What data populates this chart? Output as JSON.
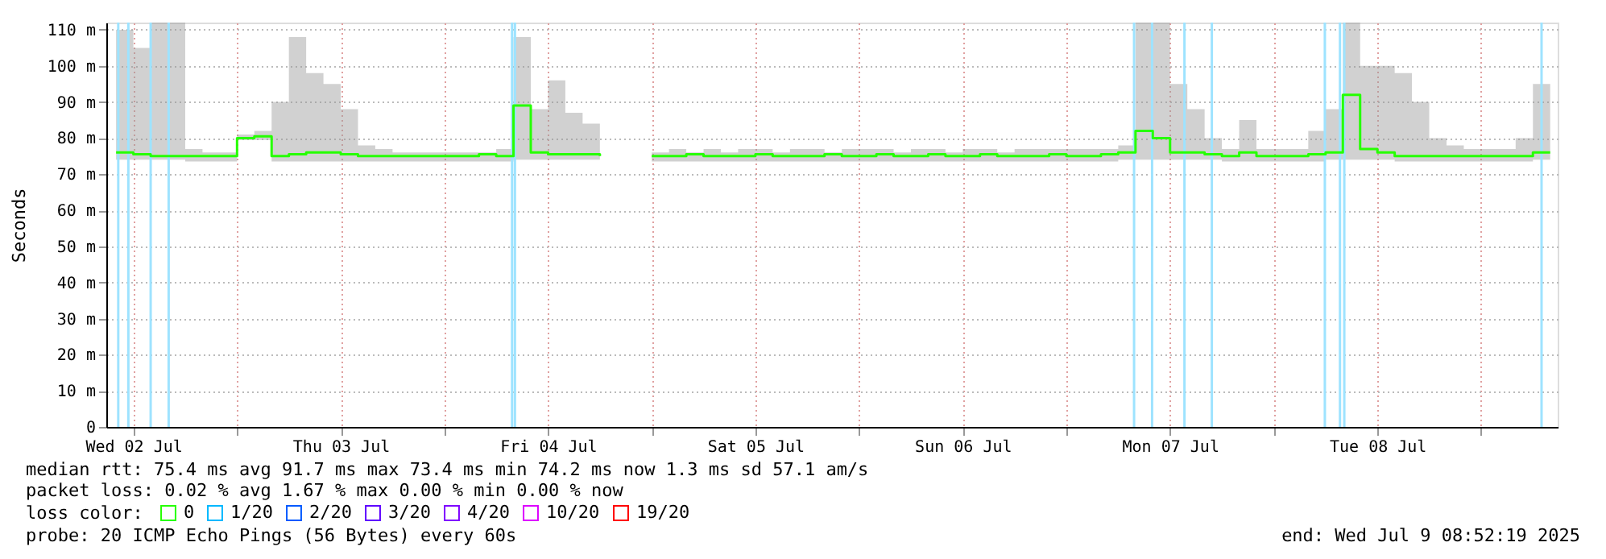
{
  "chart_data": {
    "type": "step",
    "ylabel": "Seconds",
    "legend_title": "loss color:",
    "legend": "bottom left",
    "grid": true,
    "marker": "none",
    "line_style": "solid",
    "xlim": [
      "2025-07-02T08:52",
      "2025-07-09T08:52"
    ],
    "xticks": [
      {
        "value": "2025-07-02T12:00",
        "label": "Wed 02 Jul"
      },
      {
        "value": "2025-07-03T00:00",
        "label": null
      },
      {
        "value": "2025-07-03T12:00",
        "label": "Thu 03 Jul"
      },
      {
        "value": "2025-07-04T00:00",
        "label": null
      },
      {
        "value": "2025-07-04T12:00",
        "label": "Fri 04 Jul"
      },
      {
        "value": "2025-07-05T00:00",
        "label": null
      },
      {
        "value": "2025-07-05T12:00",
        "label": "Sat 05 Jul"
      },
      {
        "value": "2025-07-06T00:00",
        "label": null
      },
      {
        "value": "2025-07-06T12:00",
        "label": "Sun 06 Jul"
      },
      {
        "value": "2025-07-07T00:00",
        "label": null
      },
      {
        "value": "2025-07-07T12:00",
        "label": "Mon 07 Jul"
      },
      {
        "value": "2025-07-08T00:00",
        "label": null
      },
      {
        "value": "2025-07-08T12:00",
        "label": "Tue 08 Jul"
      },
      {
        "value": "2025-07-09T00:00",
        "label": null
      }
    ],
    "ylim": [
      0,
      112
    ],
    "yticks": [
      {
        "value": 0,
        "label": "0"
      },
      {
        "value": 10,
        "label": "10 m"
      },
      {
        "value": 20,
        "label": "20 m"
      },
      {
        "value": 30,
        "label": "30 m"
      },
      {
        "value": 40,
        "label": "40 m"
      },
      {
        "value": 50,
        "label": "50 m"
      },
      {
        "value": 60,
        "label": "60 m"
      },
      {
        "value": 70,
        "label": "70 m"
      },
      {
        "value": 80,
        "label": "80 m"
      },
      {
        "value": 90,
        "label": "90 m"
      },
      {
        "value": 100,
        "label": "100 m"
      },
      {
        "value": 110,
        "label": "110 m"
      }
    ],
    "x": [
      "2025-07-02T10:00",
      "2025-07-02T12:00",
      "2025-07-02T14:00",
      "2025-07-02T16:00",
      "2025-07-02T18:00",
      "2025-07-02T20:00",
      "2025-07-02T22:00",
      "2025-07-03T00:00",
      "2025-07-03T02:00",
      "2025-07-03T04:00",
      "2025-07-03T06:00",
      "2025-07-03T08:00",
      "2025-07-03T10:00",
      "2025-07-03T12:00",
      "2025-07-03T14:00",
      "2025-07-03T16:00",
      "2025-07-03T18:00",
      "2025-07-03T20:00",
      "2025-07-03T22:00",
      "2025-07-04T00:00",
      "2025-07-04T02:00",
      "2025-07-04T04:00",
      "2025-07-04T06:00",
      "2025-07-04T08:00",
      "2025-07-04T10:00",
      "2025-07-04T12:00",
      "2025-07-04T14:00",
      "2025-07-04T16:00",
      "2025-07-04T18:00",
      "2025-07-04T20:00",
      "2025-07-04T22:00",
      "2025-07-05T00:00",
      "2025-07-05T02:00",
      "2025-07-05T04:00",
      "2025-07-05T06:00",
      "2025-07-05T08:00",
      "2025-07-05T10:00",
      "2025-07-05T12:00",
      "2025-07-05T14:00",
      "2025-07-05T16:00",
      "2025-07-05T18:00",
      "2025-07-05T20:00",
      "2025-07-05T22:00",
      "2025-07-06T00:00",
      "2025-07-06T02:00",
      "2025-07-06T04:00",
      "2025-07-06T06:00",
      "2025-07-06T08:00",
      "2025-07-06T10:00",
      "2025-07-06T12:00",
      "2025-07-06T14:00",
      "2025-07-06T16:00",
      "2025-07-06T18:00",
      "2025-07-06T20:00",
      "2025-07-06T22:00",
      "2025-07-07T00:00",
      "2025-07-07T02:00",
      "2025-07-07T04:00",
      "2025-07-07T06:00",
      "2025-07-07T08:00",
      "2025-07-07T10:00",
      "2025-07-07T12:00",
      "2025-07-07T14:00",
      "2025-07-07T16:00",
      "2025-07-07T18:00",
      "2025-07-07T20:00",
      "2025-07-07T22:00",
      "2025-07-08T00:00",
      "2025-07-08T02:00",
      "2025-07-08T04:00",
      "2025-07-08T06:00",
      "2025-07-08T08:00",
      "2025-07-08T10:00",
      "2025-07-08T12:00",
      "2025-07-08T14:00",
      "2025-07-08T16:00",
      "2025-07-08T18:00",
      "2025-07-08T20:00",
      "2025-07-08T22:00",
      "2025-07-09T00:00",
      "2025-07-09T02:00",
      "2025-07-09T04:00",
      "2025-07-09T06:00",
      "2025-07-09T08:00"
    ],
    "series": [
      {
        "name": "0",
        "color": "#26ff00",
        "values": [
          76,
          75.5,
          75,
          75,
          75,
          75,
          75,
          80,
          80.5,
          75,
          75.5,
          76,
          76,
          75.5,
          75,
          75,
          75,
          75,
          75,
          75,
          75,
          75.5,
          75,
          89,
          76,
          75.5,
          75.5,
          75.5,
          75,
          null,
          null,
          75,
          75,
          75.5,
          75,
          75,
          75,
          75.5,
          75,
          75,
          75,
          75.5,
          75,
          75,
          75.5,
          75,
          75,
          75.5,
          75,
          75,
          75.5,
          75,
          75,
          75,
          75.5,
          75,
          75,
          75.5,
          76,
          82,
          80,
          76,
          76,
          75.5,
          75,
          76,
          75,
          75,
          75,
          75.5,
          76,
          92,
          77,
          76,
          75,
          75,
          75,
          75,
          75,
          75,
          75,
          75,
          76,
          76
        ],
        "lower": [
          74,
          74,
          74,
          74,
          73.5,
          73.5,
          73.5,
          79.5,
          79.5,
          73.5,
          73.5,
          73.5,
          73.5,
          73.5,
          73.5,
          73.5,
          73.5,
          73.5,
          73.5,
          73.5,
          73.5,
          73.5,
          73.5,
          74,
          74,
          74,
          74,
          74,
          74,
          null,
          null,
          73.5,
          73.5,
          73.5,
          73.5,
          73.5,
          73.5,
          73.5,
          73.5,
          73.5,
          73.5,
          73.5,
          73.5,
          73.5,
          73.5,
          73.5,
          73.5,
          73.5,
          73.5,
          73.5,
          73.5,
          73.5,
          73.5,
          73.5,
          73.5,
          73.5,
          73.5,
          73.5,
          74,
          74,
          74,
          74,
          74,
          74,
          73.5,
          73.5,
          73.5,
          73.5,
          73.5,
          73.5,
          74,
          74,
          74,
          74,
          73.5,
          73.5,
          73.5,
          73.5,
          73.5,
          73.5,
          73.5,
          73.5,
          74,
          74
        ],
        "upper": [
          110,
          105,
          112,
          112,
          77,
          76,
          76,
          81,
          82,
          90,
          108,
          98,
          95,
          88,
          78,
          77,
          76,
          76,
          76,
          76,
          76,
          76,
          77,
          108,
          88,
          96,
          87,
          84,
          77,
          null,
          null,
          76,
          77,
          76,
          77,
          76,
          77,
          77,
          76,
          77,
          77,
          76,
          77,
          77,
          77,
          76,
          77,
          77,
          76,
          77,
          77,
          76,
          77,
          77,
          77,
          77,
          77,
          77,
          78,
          112,
          112,
          95,
          88,
          80,
          77,
          85,
          77,
          77,
          77,
          82,
          88,
          112,
          100,
          100,
          98,
          90,
          80,
          78,
          77,
          77,
          77,
          80,
          95,
          95
        ]
      },
      {
        "name": "1/20",
        "color": "#00b8ff",
        "values": [
          null,
          null,
          null,
          null,
          null,
          null,
          null,
          null,
          null,
          null,
          null,
          null,
          null,
          null,
          null,
          null,
          null,
          null,
          null,
          null,
          null,
          null,
          null,
          null,
          null,
          null,
          null,
          null,
          null,
          null,
          null,
          null,
          null,
          null,
          null,
          null,
          null,
          null,
          null,
          null,
          null,
          null,
          null,
          null,
          null,
          null,
          null,
          null,
          null,
          null,
          null,
          null,
          null,
          null,
          null,
          null,
          null,
          null,
          null,
          null,
          null,
          null,
          null,
          null,
          null,
          null,
          null,
          null,
          null,
          null,
          null,
          null,
          null,
          null,
          null,
          null,
          null,
          null,
          null,
          null,
          null,
          null,
          null,
          null
        ]
      },
      {
        "name": "2/20",
        "color": "#0059ff",
        "values": [
          null,
          null,
          null,
          null,
          null,
          null,
          null,
          null,
          null,
          null,
          null,
          null,
          null,
          null,
          null,
          null,
          null,
          null,
          null,
          null,
          null,
          null,
          null,
          null,
          null,
          null,
          null,
          null,
          null,
          null,
          null,
          null,
          null,
          null,
          null,
          null,
          null,
          null,
          null,
          null,
          null,
          null,
          null,
          null,
          null,
          null,
          null,
          null,
          null,
          null,
          null,
          null,
          null,
          null,
          null,
          null,
          null,
          null,
          null,
          null,
          null,
          null,
          null,
          null,
          null,
          null,
          null,
          null,
          null,
          null,
          null,
          null,
          null,
          null,
          null,
          null,
          null,
          null,
          null,
          null,
          null,
          null,
          null,
          null
        ]
      },
      {
        "name": "3/20",
        "color": "#5e00ff",
        "values": [
          null,
          null,
          null,
          null,
          null,
          null,
          null,
          null,
          null,
          null,
          null,
          null,
          null,
          null,
          null,
          null,
          null,
          null,
          null,
          null,
          null,
          null,
          null,
          null,
          null,
          null,
          null,
          null,
          null,
          null,
          null,
          null,
          null,
          null,
          null,
          null,
          null,
          null,
          null,
          null,
          null,
          null,
          null,
          null,
          null,
          null,
          null,
          null,
          null,
          null,
          null,
          null,
          null,
          null,
          null,
          null,
          null,
          null,
          null,
          null,
          null,
          null,
          null,
          null,
          null,
          null,
          null,
          null,
          null,
          null,
          null,
          null,
          null,
          null,
          null,
          null,
          null,
          null,
          null,
          null,
          null,
          null,
          null,
          null
        ]
      },
      {
        "name": "4/20",
        "color": "#7e00ff",
        "values": [
          null,
          null,
          null,
          null,
          null,
          null,
          null,
          null,
          null,
          null,
          null,
          null,
          null,
          null,
          null,
          null,
          null,
          null,
          null,
          null,
          null,
          null,
          null,
          null,
          null,
          null,
          null,
          null,
          null,
          null,
          null,
          null,
          null,
          null,
          null,
          null,
          null,
          null,
          null,
          null,
          null,
          null,
          null,
          null,
          null,
          null,
          null,
          null,
          null,
          null,
          null,
          null,
          null,
          null,
          null,
          null,
          null,
          null,
          null,
          null,
          null,
          null,
          null,
          null,
          null,
          null,
          null,
          null,
          null,
          null,
          null,
          null,
          null,
          null,
          null,
          null,
          null,
          null,
          null,
          null,
          null,
          null,
          null,
          null
        ]
      },
      {
        "name": "10/20",
        "color": "#dd00ff",
        "values": [
          null,
          null,
          null,
          null,
          null,
          null,
          null,
          null,
          null,
          null,
          null,
          null,
          null,
          null,
          null,
          null,
          null,
          null,
          null,
          null,
          null,
          null,
          null,
          null,
          null,
          null,
          null,
          null,
          null,
          null,
          null,
          null,
          null,
          null,
          null,
          null,
          null,
          null,
          null,
          null,
          null,
          null,
          null,
          null,
          null,
          null,
          null,
          null,
          null,
          null,
          null,
          null,
          null,
          null,
          null,
          null,
          null,
          null,
          null,
          null,
          null,
          null,
          null,
          null,
          null,
          null,
          null,
          null,
          null,
          null,
          null,
          null,
          null,
          null,
          null,
          null,
          null,
          null,
          null,
          null,
          null,
          null,
          null,
          null
        ]
      },
      {
        "name": "19/20",
        "color": "#ff0000",
        "values": [
          null,
          null,
          null,
          null,
          null,
          null,
          null,
          null,
          null,
          null,
          null,
          null,
          null,
          null,
          null,
          null,
          null,
          null,
          null,
          null,
          null,
          null,
          null,
          null,
          null,
          null,
          null,
          null,
          null,
          null,
          null,
          null,
          null,
          null,
          null,
          null,
          null,
          null,
          null,
          null,
          null,
          null,
          null,
          null,
          null,
          null,
          null,
          null,
          null,
          null,
          null,
          null,
          null,
          null,
          null,
          null,
          null,
          null,
          null,
          null,
          null,
          null,
          null,
          null,
          null,
          null,
          null,
          null,
          null,
          null,
          null,
          null,
          null,
          null,
          null,
          null,
          null,
          null,
          null,
          null,
          null,
          null,
          null,
          null
        ]
      }
    ],
    "ref_lines": [
      {
        "axis": "x",
        "value": "2025-07-02T10:15",
        "color": "#9ee3ff"
      },
      {
        "axis": "x",
        "value": "2025-07-02T11:25",
        "color": "#9ee3ff"
      },
      {
        "axis": "x",
        "value": "2025-07-02T14:00",
        "color": "#9ee3ff"
      },
      {
        "axis": "x",
        "value": "2025-07-02T16:05",
        "color": "#9ee3ff"
      },
      {
        "axis": "x",
        "value": "2025-07-04T07:50",
        "color": "#9ee3ff"
      },
      {
        "axis": "x",
        "value": "2025-07-04T08:10",
        "color": "#9ee3ff"
      },
      {
        "axis": "x",
        "value": "2025-07-07T07:50",
        "color": "#9ee3ff"
      },
      {
        "axis": "x",
        "value": "2025-07-07T09:55",
        "color": "#9ee3ff"
      },
      {
        "axis": "x",
        "value": "2025-07-07T13:40",
        "color": "#9ee3ff"
      },
      {
        "axis": "x",
        "value": "2025-07-07T16:50",
        "color": "#9ee3ff"
      },
      {
        "axis": "x",
        "value": "2025-07-08T05:55",
        "color": "#9ee3ff"
      },
      {
        "axis": "x",
        "value": "2025-07-08T07:40",
        "color": "#9ee3ff"
      },
      {
        "axis": "x",
        "value": "2025-07-08T08:10",
        "color": "#9ee3ff"
      },
      {
        "axis": "x",
        "value": "2025-07-09T07:00",
        "color": "#9ee3ff"
      }
    ],
    "annotations": [
      "median rtt:  75.4 ms avg  91.7 ms max  73.4 ms min  74.2 ms now  1.3 ms sd  57.1   am/s",
      "packet loss: 0.02 % avg  1.67 % max  0.00 % min  0.00 % now",
      "probe:       20 ICMP Echo Pings (56 Bytes) every 60s",
      "end: Wed Jul  9 08:52:19 2025"
    ]
  }
}
